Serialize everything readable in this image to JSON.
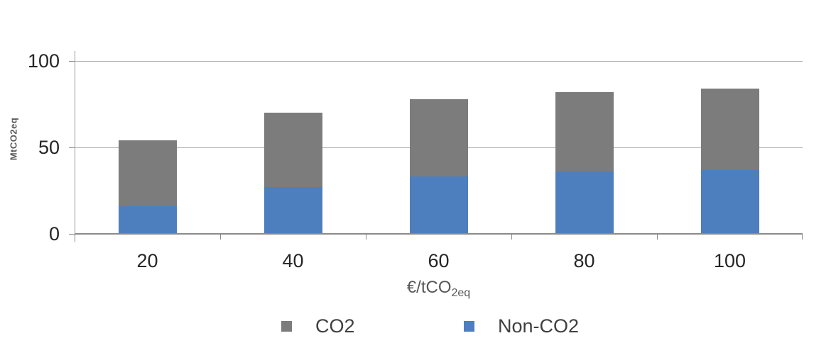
{
  "chart_data": {
    "type": "bar",
    "stacked": true,
    "title": "",
    "categories": [
      "20",
      "40",
      "60",
      "80",
      "100"
    ],
    "series": [
      {
        "name": "CO2",
        "color": "#7c7c7c",
        "values": [
          38,
          43,
          45,
          46,
          47
        ]
      },
      {
        "name": "Non-CO2",
        "color": "#4d7fbe",
        "values": [
          16,
          27,
          33,
          36,
          37
        ]
      }
    ],
    "stack_totals": [
      54,
      70,
      78,
      82,
      84
    ],
    "stack_order_bottom_to_top": [
      "Non-CO2",
      "CO2"
    ],
    "xlabel": "€/tCO2eq",
    "xlabel_main": "€/tCO",
    "xlabel_sub": "2eq",
    "ylabel": "MtCO2eq",
    "ylim": [
      0,
      100
    ],
    "yticks": [
      0,
      50,
      100
    ],
    "ytick_labels_top_to_bottom": [
      "100",
      "50",
      "0"
    ],
    "grid": "horizontal",
    "legend_position": "bottom"
  },
  "legend": {
    "items": [
      {
        "label": "CO2",
        "color": "#7c7c7c"
      },
      {
        "label": "Non-CO2",
        "color": "#4d7fbe"
      }
    ]
  }
}
